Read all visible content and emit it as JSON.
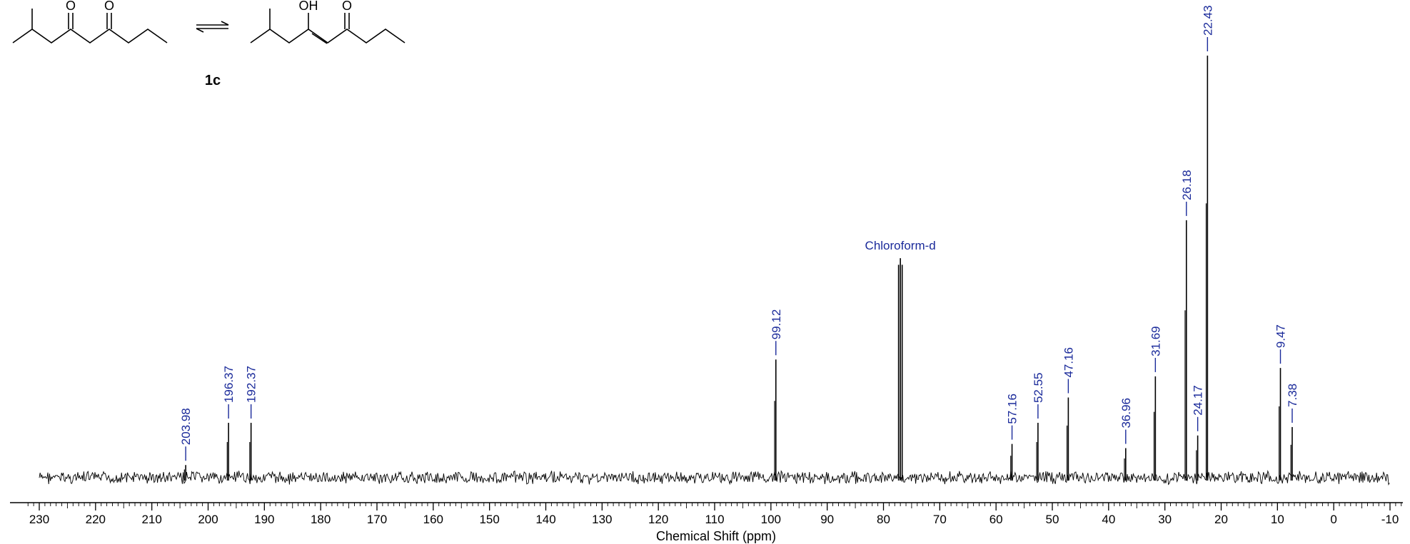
{
  "molecule": {
    "compound_label": "1c",
    "diketo_atoms": [
      "O",
      "O"
    ],
    "enol_atoms": [
      "OH",
      "O"
    ],
    "equilibrium_symbol": "⇌"
  },
  "chart_data": {
    "type": "line",
    "xlabel": "Chemical Shift (ppm)",
    "xlim": [
      232,
      -12
    ],
    "x_reversed": true,
    "ticks": [
      230,
      220,
      210,
      200,
      190,
      180,
      170,
      160,
      150,
      140,
      130,
      120,
      110,
      100,
      90,
      80,
      70,
      60,
      50,
      40,
      30,
      20,
      10,
      0,
      -10
    ],
    "tick_labels": [
      "230",
      "220",
      "210",
      "200",
      "190",
      "180",
      "170",
      "160",
      "150",
      "140",
      "130",
      "120",
      "110",
      "100",
      "90",
      "80",
      "70",
      "60",
      "50",
      "40",
      "30",
      "20",
      "10",
      "0",
      "-10"
    ],
    "ylim": [
      -0.08,
      1.0
    ],
    "grid": false,
    "spectrum_range": [
      230,
      -10
    ],
    "peaks": [
      {
        "ppm": 203.98,
        "label": "203.98",
        "intensity": 0.03
      },
      {
        "ppm": 196.37,
        "label": "196.37",
        "intensity": 0.13
      },
      {
        "ppm": 192.37,
        "label": "192.37",
        "intensity": 0.13
      },
      {
        "ppm": 99.12,
        "label": "99.12",
        "intensity": 0.28
      },
      {
        "ppm": 57.16,
        "label": "57.16",
        "intensity": 0.08
      },
      {
        "ppm": 52.55,
        "label": "52.55",
        "intensity": 0.13
      },
      {
        "ppm": 47.16,
        "label": "47.16",
        "intensity": 0.19
      },
      {
        "ppm": 36.96,
        "label": "36.96",
        "intensity": 0.07
      },
      {
        "ppm": 31.69,
        "label": "31.69",
        "intensity": 0.24
      },
      {
        "ppm": 26.18,
        "label": "26.18",
        "intensity": 0.61
      },
      {
        "ppm": 24.17,
        "label": "24.17",
        "intensity": 0.1
      },
      {
        "ppm": 22.43,
        "label": "22.43",
        "intensity": 1.0
      },
      {
        "ppm": 9.47,
        "label": "9.47",
        "intensity": 0.26
      },
      {
        "ppm": 7.38,
        "label": "7.38",
        "intensity": 0.12
      }
    ],
    "solvent": {
      "label": "Chloroform-d",
      "center_ppm": 77.0,
      "peaks": [
        77.32,
        77.0,
        76.68
      ],
      "intensity": 0.52
    },
    "colors": {
      "spectrum": "#000000",
      "labels": "#1a2a9a"
    }
  }
}
